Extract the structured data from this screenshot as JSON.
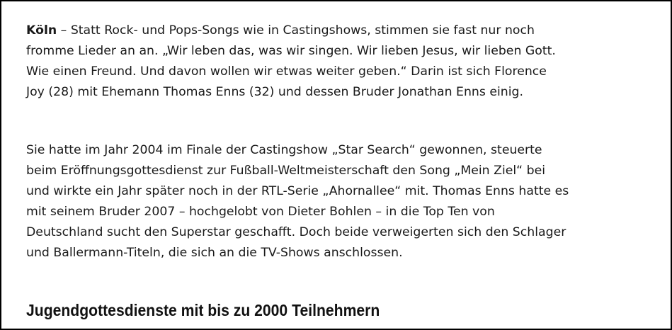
{
  "article": {
    "paragraph1": {
      "dateline": "Köln",
      "lines": [
        " – Statt Rock- und Pops-Songs wie in Castingshows, stimmen sie fast nur noch",
        "fromme Lieder an an. „Wir leben das, was wir singen. Wir lieben Jesus, wir lieben Gott.",
        "Wie einen Freund. Und davon wollen wir etwas weiter geben.“ Darin ist sich Florence",
        "Joy (28) mit Ehemann Thomas Enns (32) und dessen Bruder Jonathan Enns einig."
      ]
    },
    "paragraph2": {
      "lines": [
        "Sie hatte im Jahr 2004 im Finale der Castingshow „Star Search“ gewonnen, steuerte",
        "beim Eröffnungsgottesdienst zur Fußball-Weltmeisterschaft den Song „Mein Ziel“ bei",
        "und wirkte ein Jahr später noch in der RTL-Serie „Ahornallee“ mit. Thomas Enns hatte es",
        "mit seinem Bruder 2007 – hochgelobt von Dieter Bohlen – in die Top Ten von",
        "Deutschland sucht den Superstar geschafft. Doch beide verweigerten sich den Schlager",
        "und Ballermann-Titeln, die sich an die TV-Shows anschlossen."
      ]
    },
    "heading": "Jugendgottesdienste mit bis zu 2000 Teilnehmern"
  }
}
